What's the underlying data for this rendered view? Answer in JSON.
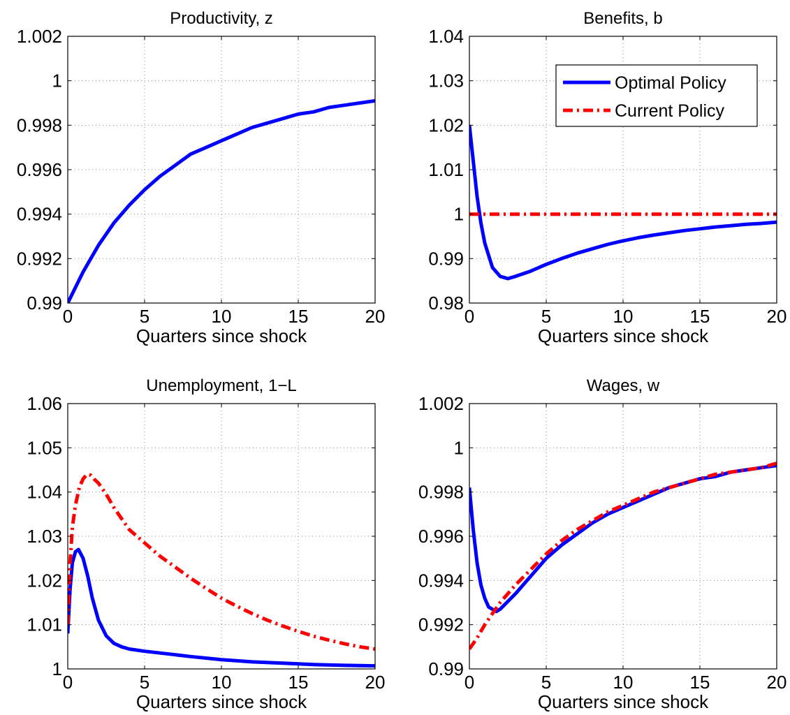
{
  "chart_data": [
    {
      "type": "line",
      "title": "Productivity, z",
      "xlabel": "Quarters since shock",
      "ylabel": "",
      "xlim": [
        0,
        20
      ],
      "ylim": [
        0.99,
        1.002
      ],
      "xticks": [
        0,
        5,
        10,
        15,
        20
      ],
      "xtick_labels": [
        "0",
        "5",
        "10",
        "15",
        "20"
      ],
      "yticks": [
        0.99,
        0.992,
        0.994,
        0.996,
        0.998,
        1,
        1.002
      ],
      "ytick_labels": [
        "0.99",
        "0.992",
        "0.994",
        "0.996",
        "0.998",
        "1",
        "1.002"
      ],
      "grid": true,
      "legend": null,
      "series": [
        {
          "color": "#0000ff",
          "style": "solid",
          "x": [
            0,
            1,
            2,
            3,
            4,
            5,
            6,
            7,
            8,
            9,
            10,
            11,
            12,
            13,
            14,
            15,
            16,
            17,
            18,
            19,
            20
          ],
          "values": [
            0.99,
            0.9914,
            0.9926,
            0.9936,
            0.9944,
            0.9951,
            0.9957,
            0.9962,
            0.9967,
            0.997,
            0.9973,
            0.9976,
            0.9979,
            0.9981,
            0.9983,
            0.9985,
            0.9986,
            0.9988,
            0.9989,
            0.999,
            0.9991
          ]
        }
      ]
    },
    {
      "type": "line",
      "title": "Benefits, b",
      "xlabel": "Quarters since shock",
      "ylabel": "",
      "xlim": [
        0,
        20
      ],
      "ylim": [
        0.98,
        1.04
      ],
      "xticks": [
        0,
        5,
        10,
        15,
        20
      ],
      "xtick_labels": [
        "0",
        "5",
        "10",
        "15",
        "20"
      ],
      "yticks": [
        0.98,
        0.99,
        1,
        1.01,
        1.02,
        1.03,
        1.04
      ],
      "ytick_labels": [
        "0.98",
        "0.99",
        "1",
        "1.01",
        "1.02",
        "1.03",
        "1.04"
      ],
      "grid": true,
      "legend": "top-right",
      "series": [
        {
          "name": "Optimal Policy",
          "color": "#0000ff",
          "style": "solid",
          "x": [
            0,
            0.25,
            0.5,
            0.75,
            1,
            1.5,
            2,
            2.5,
            3,
            4,
            5,
            6,
            7,
            8,
            9,
            10,
            11,
            12,
            13,
            14,
            15,
            16,
            17,
            18,
            19,
            20
          ],
          "values": [
            1.02,
            1.012,
            1.004,
            0.998,
            0.9935,
            0.988,
            0.986,
            0.9855,
            0.986,
            0.9872,
            0.9887,
            0.99,
            0.9912,
            0.9922,
            0.9932,
            0.994,
            0.9947,
            0.9953,
            0.9958,
            0.9963,
            0.9967,
            0.9971,
            0.9974,
            0.9977,
            0.9979,
            0.9982
          ]
        },
        {
          "name": "Current Policy",
          "color": "#ff0000",
          "style": "dashdot",
          "x": [
            0,
            20
          ],
          "values": [
            1,
            1
          ]
        }
      ]
    },
    {
      "type": "line",
      "title": "Unemployment, 1−L",
      "xlabel": "Quarters since shock",
      "ylabel": "",
      "xlim": [
        0,
        20
      ],
      "ylim": [
        1,
        1.06
      ],
      "xticks": [
        0,
        5,
        10,
        15,
        20
      ],
      "xtick_labels": [
        "0",
        "5",
        "10",
        "15",
        "20"
      ],
      "yticks": [
        1,
        1.01,
        1.02,
        1.03,
        1.04,
        1.05,
        1.06
      ],
      "ytick_labels": [
        "1",
        "1.01",
        "1.02",
        "1.03",
        "1.04",
        "1.05",
        "1.06"
      ],
      "grid": true,
      "legend": null,
      "series": [
        {
          "name": "Optimal Policy",
          "color": "#0000ff",
          "style": "solid",
          "x": [
            0,
            0.15,
            0.3,
            0.5,
            0.7,
            1,
            1.3,
            1.6,
            2,
            2.5,
            3,
            3.5,
            4,
            5,
            6,
            7,
            8,
            10,
            12,
            14,
            16,
            18,
            20
          ],
          "values": [
            1.008,
            1.018,
            1.024,
            1.0265,
            1.027,
            1.025,
            1.021,
            1.016,
            1.011,
            1.0075,
            1.0058,
            1.005,
            1.0045,
            1.004,
            1.0036,
            1.0032,
            1.0028,
            1.0021,
            1.0016,
            1.0013,
            1.001,
            1.0008,
            1.0007
          ]
        },
        {
          "name": "Current Policy",
          "color": "#ff0000",
          "style": "dashdot",
          "x": [
            0,
            0.15,
            0.3,
            0.5,
            0.75,
            1,
            1.25,
            1.5,
            1.75,
            2,
            2.5,
            3,
            3.5,
            4,
            5,
            6,
            7,
            8,
            9,
            10,
            11,
            12,
            13,
            14,
            15,
            16,
            17,
            18,
            19,
            20
          ],
          "values": [
            1.01,
            1.024,
            1.032,
            1.037,
            1.041,
            1.043,
            1.044,
            1.0438,
            1.0428,
            1.042,
            1.0395,
            1.0365,
            1.034,
            1.0315,
            1.0285,
            1.0255,
            1.023,
            1.0205,
            1.0182,
            1.016,
            1.0142,
            1.0125,
            1.011,
            1.0097,
            1.0085,
            1.0074,
            1.0065,
            1.0057,
            1.005,
            1.0045
          ]
        }
      ]
    },
    {
      "type": "line",
      "title": "Wages, w",
      "xlabel": "Quarters since shock",
      "ylabel": "",
      "xlim": [
        0,
        20
      ],
      "ylim": [
        0.99,
        1.002
      ],
      "xticks": [
        0,
        5,
        10,
        15,
        20
      ],
      "xtick_labels": [
        "0",
        "5",
        "10",
        "15",
        "20"
      ],
      "yticks": [
        0.99,
        0.992,
        0.994,
        0.996,
        0.998,
        1,
        1.002
      ],
      "ytick_labels": [
        "0.99",
        "0.992",
        "0.994",
        "0.996",
        "0.998",
        "1",
        "1.002"
      ],
      "grid": true,
      "legend": null,
      "series": [
        {
          "name": "Optimal Policy",
          "color": "#0000ff",
          "style": "solid",
          "x": [
            0,
            0.25,
            0.5,
            0.75,
            1,
            1.25,
            1.5,
            1.75,
            2,
            3,
            4,
            5,
            6,
            7,
            8,
            9,
            10,
            11,
            12,
            13,
            14,
            15,
            16,
            17,
            18,
            19,
            20
          ],
          "values": [
            0.9982,
            0.9963,
            0.9948,
            0.9938,
            0.9932,
            0.9928,
            0.9927,
            0.9926,
            0.9927,
            0.9934,
            0.9942,
            0.995,
            0.9956,
            0.9961,
            0.9966,
            0.997,
            0.9973,
            0.9976,
            0.9979,
            0.9982,
            0.9984,
            0.9986,
            0.9987,
            0.9989,
            0.999,
            0.9991,
            0.9992
          ]
        },
        {
          "name": "Current Policy",
          "color": "#ff0000",
          "style": "dashdot",
          "x": [
            0,
            0.5,
            1,
            1.5,
            2,
            3,
            4,
            5,
            6,
            7,
            8,
            9,
            10,
            11,
            12,
            13,
            14,
            15,
            16,
            17,
            18,
            19,
            20
          ],
          "values": [
            0.9909,
            0.9914,
            0.992,
            0.9925,
            0.993,
            0.9938,
            0.9945,
            0.9952,
            0.9958,
            0.9963,
            0.9967,
            0.9971,
            0.9974,
            0.9977,
            0.998,
            0.9982,
            0.9984,
            0.9986,
            0.9988,
            0.9989,
            0.999,
            0.9991,
            0.9993
          ]
        }
      ]
    }
  ]
}
